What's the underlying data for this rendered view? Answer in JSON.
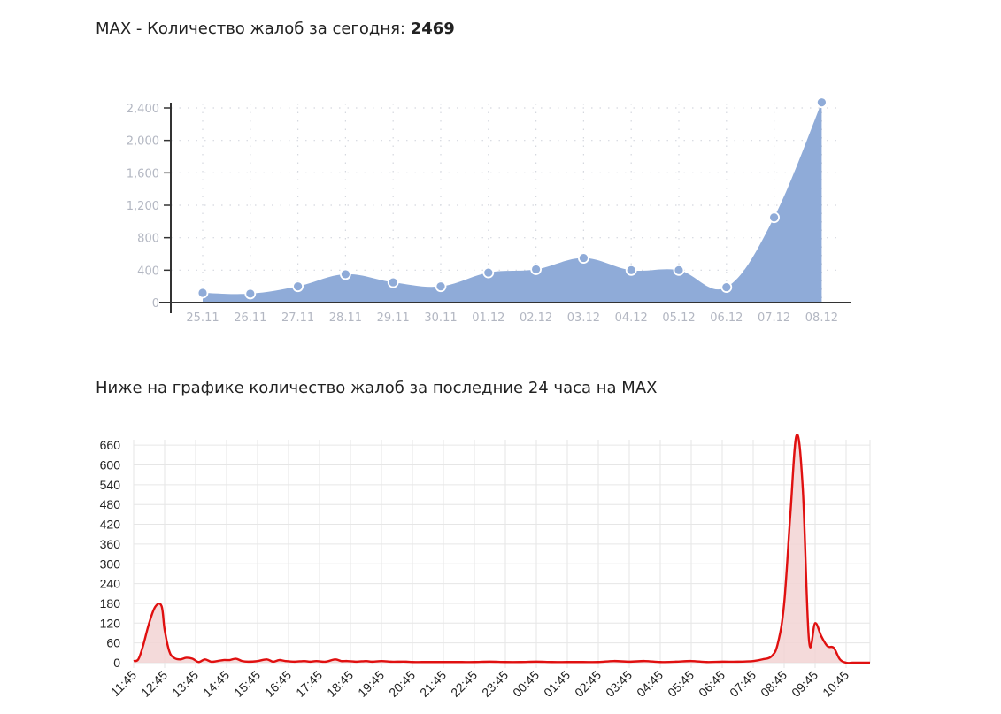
{
  "header": {
    "title_prefix": "MAX - Количество жалоб за сегодня: ",
    "title_count": "2469",
    "subtitle": "Ниже на графике количество жалоб за последние 24 часа на MAX"
  },
  "colors": {
    "daily_fill": "#8fabd8",
    "daily_axis": "#333333",
    "hourly_line": "#e01010",
    "hourly_fill": "#f2d4d4",
    "grid": "#e6e6e6"
  },
  "chart_data": [
    {
      "type": "area",
      "title": "",
      "xlabel": "",
      "ylabel": "",
      "categories": [
        "25.11",
        "26.11",
        "27.11",
        "28.11",
        "29.11",
        "30.11",
        "01.12",
        "02.12",
        "03.12",
        "04.12",
        "05.12",
        "06.12",
        "07.12",
        "08.12"
      ],
      "values": [
        120,
        110,
        200,
        350,
        250,
        200,
        370,
        410,
        550,
        400,
        400,
        190,
        1050,
        2469
      ],
      "ylim": [
        0,
        2400
      ],
      "yticks": [
        "0",
        "400",
        "800",
        "1,200",
        "1,600",
        "2,000",
        "2,400"
      ],
      "grid": "dotted",
      "markers": true
    },
    {
      "type": "line",
      "title": "",
      "xlabel": "",
      "ylabel": "",
      "x_tick_labels": [
        "11:45",
        "12:45",
        "13:45",
        "14:45",
        "15:45",
        "16:45",
        "17:45",
        "18:45",
        "19:45",
        "20:45",
        "21:45",
        "22:45",
        "23:45",
        "00:45",
        "01:45",
        "02:45",
        "03:45",
        "04:45",
        "05:45",
        "06:45",
        "07:45",
        "08:45",
        "09:45",
        "10:45"
      ],
      "x_hours": [
        0,
        0.15,
        0.3,
        0.5,
        0.7,
        0.9,
        1.0,
        1.15,
        1.3,
        1.5,
        1.7,
        1.9,
        2.1,
        2.3,
        2.5,
        2.7,
        2.9,
        3.1,
        3.3,
        3.5,
        3.7,
        4.0,
        4.3,
        4.5,
        4.7,
        4.9,
        5.2,
        5.5,
        5.7,
        5.9,
        6.2,
        6.5,
        6.7,
        6.9,
        7.2,
        7.5,
        7.7,
        8.0,
        8.3,
        8.5,
        8.8,
        9.0,
        9.3,
        9.5,
        9.8,
        10.0,
        10.3,
        10.6,
        11.0,
        11.5,
        12.0,
        12.5,
        13.0,
        13.5,
        14.0,
        14.5,
        15.0,
        15.5,
        16.0,
        16.5,
        17.0,
        17.5,
        18.0,
        18.5,
        19.0,
        19.5,
        20.0,
        20.3,
        20.6,
        20.8,
        21.0,
        21.2,
        21.4,
        21.6,
        21.8,
        22.0,
        22.2,
        22.4,
        22.6,
        22.8,
        23.0,
        23.2,
        23.4,
        23.6,
        23.8
      ],
      "values": [
        5,
        10,
        50,
        120,
        170,
        172,
        100,
        35,
        15,
        10,
        15,
        12,
        2,
        10,
        3,
        5,
        8,
        8,
        12,
        5,
        3,
        5,
        10,
        3,
        8,
        5,
        3,
        5,
        3,
        5,
        3,
        10,
        5,
        5,
        3,
        5,
        3,
        5,
        3,
        3,
        3,
        2,
        2,
        2,
        2,
        2,
        2,
        2,
        2,
        3,
        2,
        2,
        3,
        2,
        2,
        2,
        2,
        5,
        3,
        5,
        2,
        3,
        5,
        2,
        3,
        3,
        5,
        10,
        20,
        60,
        180,
        450,
        690,
        530,
        70,
        120,
        80,
        50,
        45,
        10,
        0,
        0,
        0,
        0,
        0
      ],
      "ylim": [
        0,
        690
      ],
      "yticks": [
        "0",
        "60",
        "120",
        "180",
        "240",
        "300",
        "360",
        "420",
        "480",
        "540",
        "600",
        "660"
      ],
      "grid": "solid"
    }
  ]
}
